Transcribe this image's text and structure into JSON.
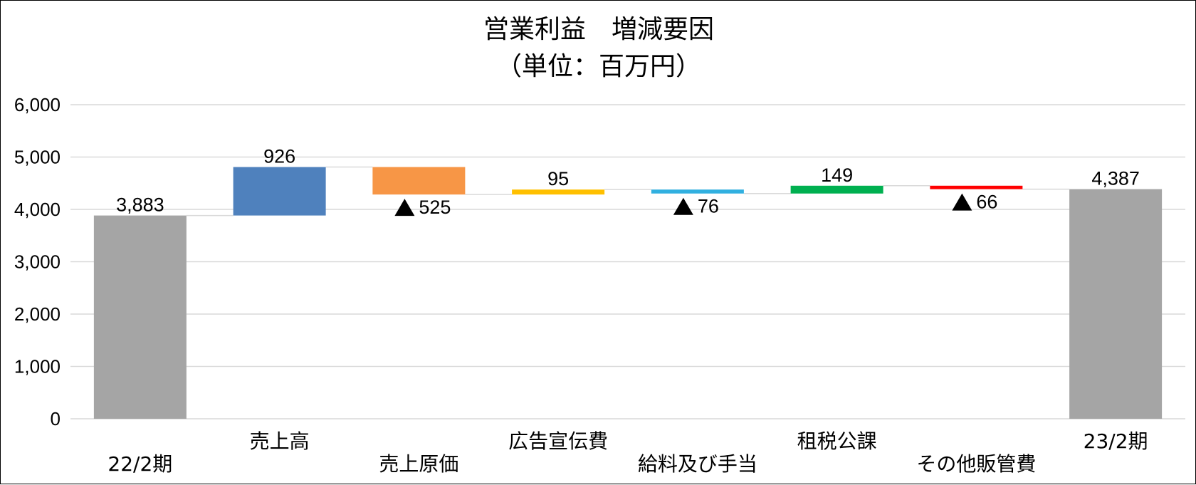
{
  "chart_data": {
    "type": "waterfall",
    "title": "営業利益　増減要因",
    "subtitle": "（単位：百万円）",
    "ylim": [
      0,
      6000
    ],
    "yticks": [
      0,
      1000,
      2000,
      3000,
      4000,
      5000,
      6000
    ],
    "ytick_labels": [
      "0",
      "1,000",
      "2,000",
      "3,000",
      "4,000",
      "5,000",
      "6,000"
    ],
    "grid": true,
    "categories": [
      "22/2期",
      "売上高",
      "売上原価",
      "広告宣伝費",
      "給料及び手当",
      "租税公課",
      "その他販管費",
      "23/2期"
    ],
    "values": [
      3883,
      926,
      -525,
      95,
      -76,
      149,
      -66,
      4387
    ],
    "kinds": [
      "total",
      "delta",
      "delta",
      "delta",
      "delta",
      "delta",
      "delta",
      "total"
    ],
    "data_labels": [
      "3,883",
      "926",
      "▲ 525",
      "95",
      "▲ 76",
      "149",
      "▲ 66",
      "4,387"
    ],
    "colors": [
      "#a5a5a5",
      "#4f81bd",
      "#f79646",
      "#ffc000",
      "#31b0e0",
      "#00b050",
      "#ff0000",
      "#a5a5a5"
    ]
  }
}
